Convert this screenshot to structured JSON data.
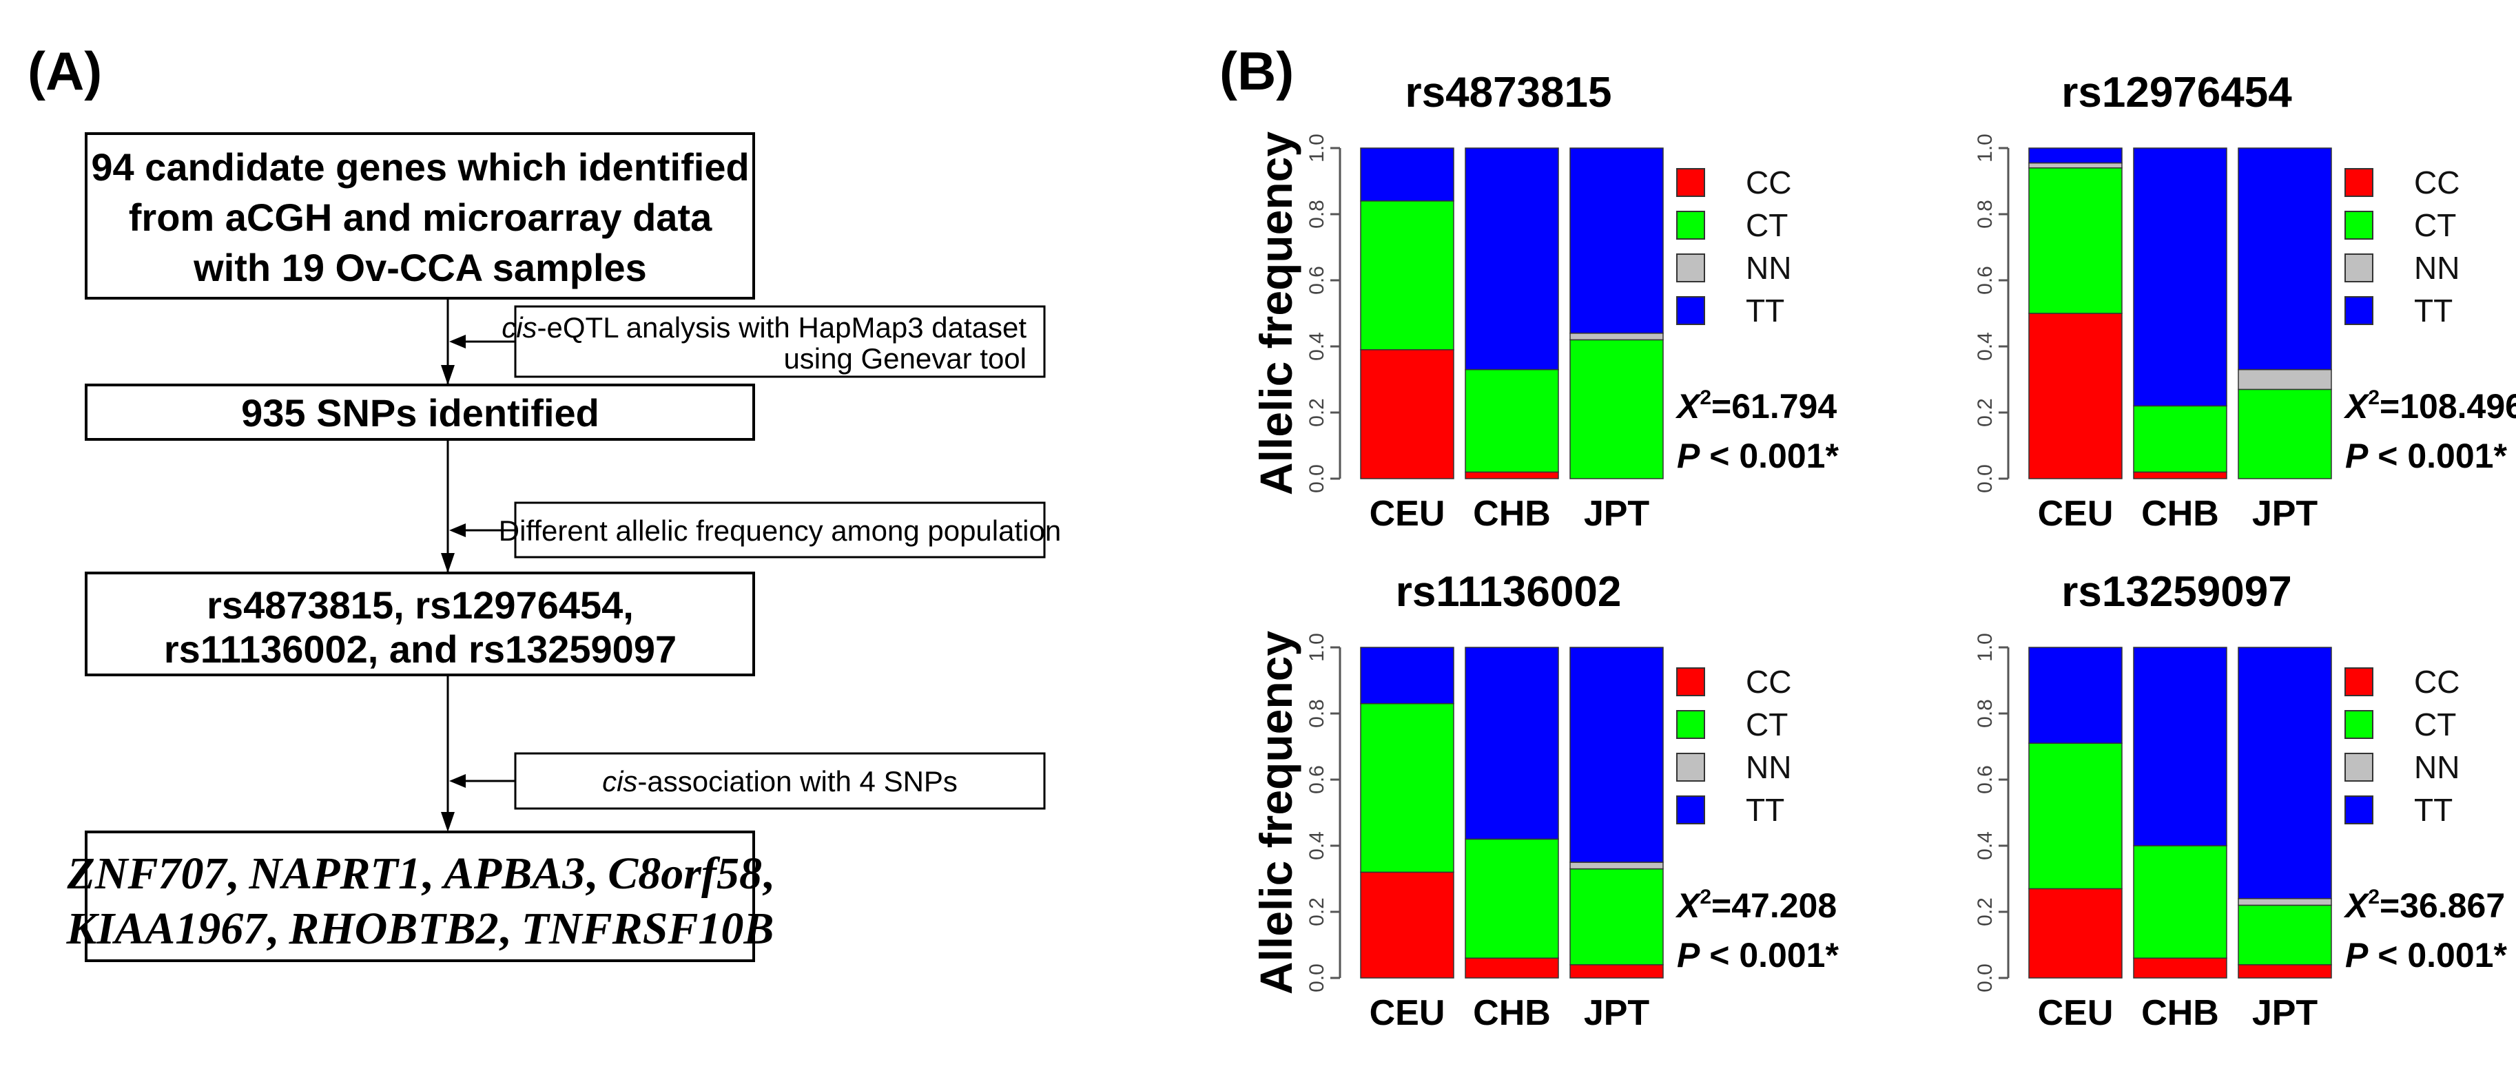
{
  "panel_a": {
    "label": "(A)",
    "box1": [
      "94 candidate genes which identified",
      "from aCGH and microarray data",
      "with 19 Ov-CCA samples"
    ],
    "step1": {
      "italic": "cis",
      "line1": "-eQTL analysis with HapMap3 dataset",
      "line2": "using Genevar tool"
    },
    "box2": "935 SNPs identified",
    "step2": "Different allelic frequency among population",
    "box3": [
      "rs4873815, rs12976454,",
      "rs11136002, and rs13259097"
    ],
    "step3": {
      "italic": "cis",
      "rest": "-association with 4 SNPs"
    },
    "genes": [
      "ZNF707",
      "NAPRT1",
      "APBA3",
      "C8orf58",
      "KIAA1967",
      "RHOBTB2",
      "TNFRSF10B"
    ],
    "sep": ", ",
    "end_comma": ","
  },
  "panel_b": {
    "label": "(B)"
  },
  "colors": {
    "CC": "#ff0000",
    "CT": "#00ff00",
    "NN": "#c0c0c0",
    "TT": "#0000ff"
  },
  "chart_data": [
    {
      "type": "bar",
      "stacked": true,
      "title": "rs4873815",
      "ylabel": "Allelic frequency",
      "xlabel": "",
      "ylim": [
        0,
        1
      ],
      "yticks": [
        "0.0",
        "0.2",
        "0.4",
        "0.6",
        "0.8",
        "1.0"
      ],
      "categories": [
        "CEU",
        "CHB",
        "JPT"
      ],
      "series": [
        {
          "name": "CC",
          "values": [
            0.39,
            0.02,
            0.0
          ]
        },
        {
          "name": "CT",
          "values": [
            0.45,
            0.31,
            0.42
          ]
        },
        {
          "name": "NN",
          "values": [
            0.0,
            0.0,
            0.02
          ]
        },
        {
          "name": "TT",
          "values": [
            0.16,
            0.67,
            0.56
          ]
        }
      ],
      "legend": [
        "CC",
        "CT",
        "NN",
        "TT"
      ],
      "legend_position": "right",
      "stat": {
        "chi_label": "X",
        "chi_sup": "2",
        "chi_value": "=61.794",
        "p_label": "P",
        "p_value": " < 0.001*"
      }
    },
    {
      "type": "bar",
      "stacked": true,
      "title": "rs12976454",
      "ylabel": "",
      "xlabel": "",
      "ylim": [
        0,
        1
      ],
      "yticks": [
        "0.0",
        "0.2",
        "0.4",
        "0.6",
        "0.8",
        "1.0"
      ],
      "categories": [
        "CEU",
        "CHB",
        "JPT"
      ],
      "series": [
        {
          "name": "CC",
          "values": [
            0.5,
            0.02,
            0.0
          ]
        },
        {
          "name": "CT",
          "values": [
            0.44,
            0.2,
            0.27
          ]
        },
        {
          "name": "NN",
          "values": [
            0.015,
            0.0,
            0.06
          ]
        },
        {
          "name": "TT",
          "values": [
            0.045,
            0.78,
            0.67
          ]
        }
      ],
      "legend": [
        "CC",
        "CT",
        "NN",
        "TT"
      ],
      "legend_position": "right",
      "stat": {
        "chi_label": "X",
        "chi_sup": "2",
        "chi_value": "=108.496",
        "p_label": "P",
        "p_value": " < 0.001*"
      }
    },
    {
      "type": "bar",
      "stacked": true,
      "title": "rs11136002",
      "ylabel": "Allelic frequency",
      "xlabel": "",
      "ylim": [
        0,
        1
      ],
      "yticks": [
        "0.0",
        "0.2",
        "0.4",
        "0.6",
        "0.8",
        "1.0"
      ],
      "categories": [
        "CEU",
        "CHB",
        "JPT"
      ],
      "series": [
        {
          "name": "CC",
          "values": [
            0.32,
            0.06,
            0.04
          ]
        },
        {
          "name": "CT",
          "values": [
            0.51,
            0.36,
            0.29
          ]
        },
        {
          "name": "NN",
          "values": [
            0.0,
            0.0,
            0.02
          ]
        },
        {
          "name": "TT",
          "values": [
            0.17,
            0.58,
            0.65
          ]
        }
      ],
      "legend": [
        "CC",
        "CT",
        "NN",
        "TT"
      ],
      "legend_position": "right",
      "stat": {
        "chi_label": "X",
        "chi_sup": "2",
        "chi_value": "=47.208",
        "p_label": "P",
        "p_value": " < 0.001*"
      }
    },
    {
      "type": "bar",
      "stacked": true,
      "title": "rs13259097",
      "ylabel": "",
      "xlabel": "",
      "ylim": [
        0,
        1
      ],
      "yticks": [
        "0.0",
        "0.2",
        "0.4",
        "0.6",
        "0.8",
        "1.0"
      ],
      "categories": [
        "CEU",
        "CHB",
        "JPT"
      ],
      "series": [
        {
          "name": "CC",
          "values": [
            0.27,
            0.06,
            0.04
          ]
        },
        {
          "name": "CT",
          "values": [
            0.44,
            0.34,
            0.18
          ]
        },
        {
          "name": "NN",
          "values": [
            0.0,
            0.0,
            0.02
          ]
        },
        {
          "name": "TT",
          "values": [
            0.29,
            0.6,
            0.76
          ]
        }
      ],
      "legend": [
        "CC",
        "CT",
        "NN",
        "TT"
      ],
      "legend_position": "right",
      "stat": {
        "chi_label": "X",
        "chi_sup": "2",
        "chi_value": "=36.867",
        "p_label": "P",
        "p_value": " < 0.001*"
      }
    }
  ]
}
